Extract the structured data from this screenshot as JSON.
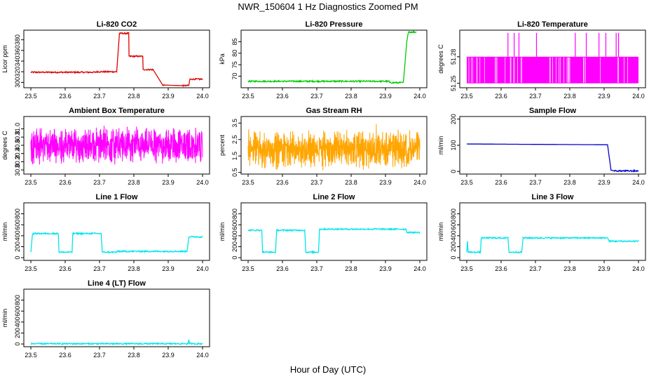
{
  "figure": {
    "title": "NWR_150604  1 Hz Diagnostics Zoomed PM",
    "xlabel": "Hour of Day (UTC)"
  },
  "chart_data": [
    {
      "type": "line",
      "title": "Li-820 CO2",
      "ylabel": "Licor ppm",
      "color": "#dd0000",
      "xlim": [
        23.5,
        24.0
      ],
      "xticks": [
        "23.5",
        "23.6",
        "23.7",
        "23.8",
        "23.9",
        "24.0"
      ],
      "ylim": [
        290,
        398
      ],
      "yticks": [
        "300",
        "320",
        "340",
        "360",
        "380"
      ],
      "series": [
        {
          "x": [
            23.5,
            23.69,
            23.69,
            23.75,
            23.758,
            23.759,
            23.785,
            23.786,
            23.826,
            23.827,
            23.855,
            23.856,
            23.884,
            23.887,
            23.94,
            23.96,
            23.963,
            24.0
          ],
          "y": [
            319,
            319,
            320,
            320,
            392,
            392,
            392,
            349,
            349,
            324,
            324,
            324,
            295,
            295,
            294,
            294,
            306,
            306
          ]
        }
      ]
    },
    {
      "type": "line",
      "title": "Li-820 Pressure",
      "ylabel": "kPa",
      "color": "#00cc00",
      "xlim": [
        23.5,
        24.0
      ],
      "xticks": [
        "23.5",
        "23.6",
        "23.7",
        "23.8",
        "23.9",
        "24.0"
      ],
      "ylim": [
        65,
        90
      ],
      "yticks": [
        "70",
        "75",
        "80",
        "85"
      ],
      "series": [
        {
          "x": [
            23.5,
            23.91,
            23.912,
            23.952,
            23.956,
            23.962,
            23.966,
            23.968,
            23.99
          ],
          "y": [
            67.8,
            67.8,
            67.2,
            67.2,
            74,
            85,
            88.5,
            89.2,
            89.2
          ]
        }
      ]
    },
    {
      "type": "line",
      "title": "Li-820 Temperature",
      "ylabel": "degrees C",
      "color": "#ff00ff",
      "xlim": [
        23.5,
        24.0
      ],
      "xticks": [
        "23.5",
        "23.6",
        "23.7",
        "23.8",
        "23.9",
        "24.0"
      ],
      "ylim": [
        51.245,
        51.31
      ],
      "yticks": [
        "51.25",
        "51.28"
      ],
      "series": [
        {
          "x": [
            23.5,
            24.0
          ],
          "y": [
            51.25,
            51.28
          ],
          "spike_x": [
            23.62,
            23.638,
            23.652,
            23.703,
            23.816,
            23.848,
            23.885,
            23.905,
            23.935,
            23.942
          ],
          "spike_y": 51.307
        }
      ]
    },
    {
      "type": "line",
      "title": "Ambient Box Temperature",
      "ylabel": "degrees C",
      "color": "#ff00ff",
      "xlim": [
        23.5,
        24.0
      ],
      "xticks": [
        "23.5",
        "23.6",
        "23.7",
        "23.8",
        "23.9",
        "24.0"
      ],
      "ylim": [
        29.9,
        31.3
      ],
      "yticks": [
        "30.0",
        "30.2",
        "30.4",
        "30.6",
        "30.8",
        "31.0"
      ],
      "series": [
        {
          "x": [
            23.5,
            24.0
          ],
          "y": [
            30.6,
            30.6
          ],
          "noise": [
            30.1,
            31.2
          ]
        }
      ]
    },
    {
      "type": "line",
      "title": "Gas Stream RH",
      "ylabel": "percent",
      "color": "#ffa500",
      "xlim": [
        23.5,
        24.0
      ],
      "xticks": [
        "23.5",
        "23.6",
        "23.7",
        "23.8",
        "23.9",
        "24.0"
      ],
      "ylim": [
        0.4,
        3.9
      ],
      "yticks": [
        "0.5",
        "1.5",
        "2.5",
        "3.5"
      ],
      "series": [
        {
          "x": [
            23.5,
            24.0
          ],
          "y": [
            1.9,
            1.9
          ],
          "noise": [
            0.6,
            3.5
          ]
        }
      ]
    },
    {
      "type": "line",
      "title": "Sample Flow",
      "ylabel": "ml/min",
      "color": "#0000cc",
      "xlim": [
        23.5,
        24.0
      ],
      "xticks": [
        "23.5",
        "23.6",
        "23.7",
        "23.8",
        "23.9",
        "24.0"
      ],
      "ylim": [
        -10,
        210
      ],
      "yticks": [
        "0",
        "100",
        "200"
      ],
      "series": [
        {
          "x": [
            23.5,
            23.91,
            23.92,
            23.93,
            24.0
          ],
          "y": [
            105,
            102,
            5,
            2,
            2
          ]
        }
      ]
    },
    {
      "type": "line",
      "title": "Line 1 Flow",
      "ylabel": "ml/min",
      "color": "#00e5ee",
      "xlim": [
        23.5,
        24.0
      ],
      "xticks": [
        "23.5",
        "23.6",
        "23.7",
        "23.8",
        "23.9",
        "24.0"
      ],
      "ylim": [
        -50,
        1000
      ],
      "yticks": [
        "0",
        "200",
        "400",
        "600",
        "800"
      ],
      "series": [
        {
          "x": [
            23.5,
            23.505,
            23.508,
            23.58,
            23.582,
            23.62,
            23.622,
            23.705,
            23.708,
            23.75,
            23.752,
            23.955,
            23.96,
            24.0
          ],
          "y": [
            100,
            440,
            440,
            440,
            100,
            100,
            440,
            440,
            100,
            100,
            115,
            115,
            380,
            380
          ]
        }
      ]
    },
    {
      "type": "line",
      "title": "Line 2 Flow",
      "ylabel": "ml/min",
      "color": "#00e5ee",
      "xlim": [
        23.5,
        24.0
      ],
      "xticks": [
        "23.5",
        "23.6",
        "23.7",
        "23.8",
        "23.9",
        "24.0"
      ],
      "ylim": [
        -50,
        1000
      ],
      "yticks": [
        "0",
        "200",
        "400",
        "600",
        "800"
      ],
      "series": [
        {
          "x": [
            23.5,
            23.54,
            23.542,
            23.58,
            23.583,
            23.665,
            23.668,
            23.705,
            23.708,
            23.96,
            23.962,
            24.0
          ],
          "y": [
            500,
            500,
            100,
            100,
            500,
            500,
            100,
            100,
            520,
            520,
            460,
            460
          ]
        }
      ]
    },
    {
      "type": "line",
      "title": "Line 3 Flow",
      "ylabel": "ml/min",
      "color": "#00e5ee",
      "xlim": [
        23.5,
        24.0
      ],
      "xticks": [
        "23.5",
        "23.6",
        "23.7",
        "23.8",
        "23.9",
        "24.0"
      ],
      "ylim": [
        -50,
        1000
      ],
      "yticks": [
        "0",
        "200",
        "400",
        "600",
        "800"
      ],
      "series": [
        {
          "x": [
            23.5,
            23.502,
            23.504,
            23.54,
            23.542,
            23.62,
            23.623,
            23.66,
            23.664,
            23.91,
            23.915,
            24.0
          ],
          "y": [
            100,
            300,
            100,
            100,
            360,
            360,
            100,
            100,
            360,
            360,
            300,
            300
          ]
        }
      ]
    },
    {
      "type": "line",
      "title": "Line 4 (LT) Flow",
      "ylabel": "ml/min",
      "color": "#00e5ee",
      "xlim": [
        23.5,
        24.0
      ],
      "xticks": [
        "23.5",
        "23.6",
        "23.7",
        "23.8",
        "23.9",
        "24.0"
      ],
      "ylim": [
        -50,
        1000
      ],
      "yticks": [
        "0",
        "200",
        "400",
        "600",
        "800"
      ],
      "series": [
        {
          "x": [
            23.5,
            23.958,
            23.96,
            23.962,
            24.0
          ],
          "y": [
            5,
            5,
            80,
            5,
            5
          ]
        }
      ]
    }
  ]
}
